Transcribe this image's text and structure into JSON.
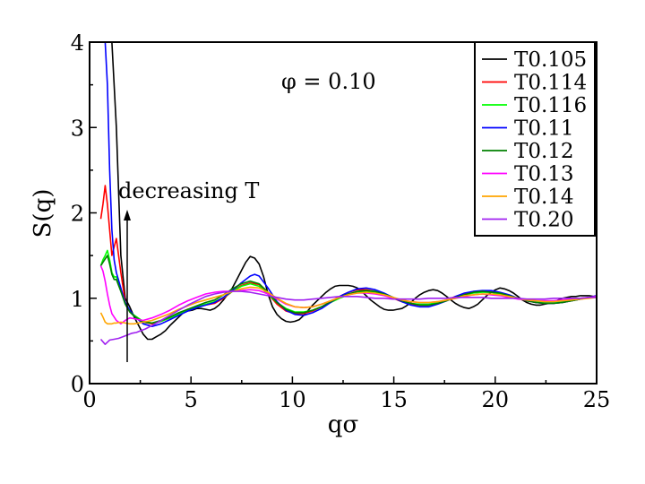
{
  "chart_data": {
    "type": "line",
    "title": "",
    "xlabel": "qσ",
    "ylabel": "S(q)",
    "xlim": [
      0,
      25
    ],
    "ylim": [
      0,
      4
    ],
    "xticks": [
      0,
      5,
      10,
      15,
      20,
      25
    ],
    "yticks": [
      0,
      1,
      2,
      3,
      4
    ],
    "grid": false,
    "legend_position": "top-right",
    "annotations": {
      "phi_label": "φ = 0.10",
      "trend_label": "decreasing T"
    },
    "series": [
      {
        "name": "T0.105",
        "color": "#000000",
        "x": [
          0.66,
          0.88,
          1.1,
          1.32,
          1.54,
          1.76,
          1.98,
          2.2,
          2.42,
          2.64,
          2.86,
          3.08,
          3.3,
          3.52,
          3.74,
          3.96,
          4.18,
          4.4,
          4.62,
          4.84,
          5.06,
          5.28,
          5.5,
          5.72,
          5.94,
          6.16,
          6.38,
          6.6,
          6.82,
          7.04,
          7.26,
          7.48,
          7.7,
          7.92,
          8.14,
          8.36,
          8.58,
          8.8,
          9.02,
          9.24,
          9.46,
          9.68,
          9.9,
          10.12,
          10.34,
          10.56,
          10.78,
          11.0,
          11.22,
          11.44,
          11.66,
          11.88,
          12.1,
          12.32,
          12.54,
          12.76,
          12.98,
          13.2,
          13.42,
          13.64,
          13.86,
          14.08,
          14.3,
          14.52,
          14.74,
          14.96,
          15.18,
          15.4,
          15.62,
          15.84,
          16.06,
          16.28,
          16.5,
          16.72,
          16.94,
          17.16,
          17.38,
          17.6,
          17.82,
          18.04,
          18.26,
          18.48,
          18.7,
          18.92,
          19.14,
          19.36,
          19.58,
          19.8,
          20.02,
          20.24,
          20.46,
          20.68,
          20.9,
          21.12,
          21.34,
          21.56,
          21.78,
          22.0,
          22.22,
          22.44,
          22.66,
          22.88,
          23.1,
          23.32,
          23.54,
          23.76,
          23.98,
          24.2,
          24.42,
          24.64,
          24.86,
          25.0
        ],
        "y": [
          4.0,
          4.0,
          4.0,
          3.0,
          1.5,
          1.0,
          0.9,
          0.78,
          0.68,
          0.58,
          0.52,
          0.52,
          0.55,
          0.58,
          0.62,
          0.68,
          0.73,
          0.78,
          0.83,
          0.85,
          0.86,
          0.88,
          0.88,
          0.87,
          0.86,
          0.88,
          0.92,
          0.98,
          1.05,
          1.12,
          1.22,
          1.32,
          1.42,
          1.49,
          1.47,
          1.4,
          1.25,
          1.05,
          0.9,
          0.81,
          0.76,
          0.73,
          0.72,
          0.73,
          0.75,
          0.8,
          0.86,
          0.92,
          0.97,
          1.02,
          1.07,
          1.11,
          1.14,
          1.15,
          1.15,
          1.15,
          1.14,
          1.12,
          1.08,
          1.03,
          0.98,
          0.94,
          0.9,
          0.87,
          0.86,
          0.86,
          0.87,
          0.88,
          0.91,
          0.95,
          1.0,
          1.04,
          1.07,
          1.09,
          1.1,
          1.09,
          1.06,
          1.02,
          0.98,
          0.94,
          0.91,
          0.89,
          0.88,
          0.9,
          0.93,
          0.98,
          1.03,
          1.07,
          1.1,
          1.12,
          1.11,
          1.09,
          1.06,
          1.02,
          0.98,
          0.95,
          0.93,
          0.92,
          0.92,
          0.93,
          0.94,
          0.96,
          0.98,
          1.0,
          1.01,
          1.02,
          1.02,
          1.03,
          1.03,
          1.03,
          1.02,
          1.03
        ]
      },
      {
        "name": "T0.114",
        "color": "#ff0000",
        "x": [
          0.55,
          0.66,
          0.77,
          0.88,
          0.99,
          1.1,
          1.21,
          1.32,
          1.54,
          1.76,
          1.98,
          2.2,
          2.64,
          3.08,
          3.52,
          3.96,
          4.4,
          4.84,
          5.28,
          5.72,
          6.16,
          6.6,
          7.04,
          7.48,
          7.92,
          8.36,
          8.8,
          9.24,
          9.68,
          10.12,
          10.56,
          11.0,
          11.44,
          11.88,
          12.32,
          12.76,
          13.2,
          13.64,
          14.08,
          14.52,
          14.96,
          15.4,
          15.84,
          16.28,
          16.72,
          17.16,
          17.6,
          18.04,
          18.48,
          18.92,
          19.36,
          19.8,
          20.24,
          20.68,
          21.12,
          21.56,
          22.0,
          22.44,
          22.88,
          23.32,
          23.76,
          24.2,
          24.64,
          25.0
        ],
        "y": [
          1.93,
          2.1,
          2.32,
          2.1,
          1.8,
          1.5,
          1.6,
          1.7,
          1.3,
          0.96,
          0.84,
          0.8,
          0.72,
          0.7,
          0.73,
          0.77,
          0.82,
          0.87,
          0.9,
          0.92,
          0.94,
          1.0,
          1.08,
          1.15,
          1.18,
          1.16,
          1.05,
          0.93,
          0.85,
          0.82,
          0.82,
          0.85,
          0.9,
          0.96,
          1.02,
          1.07,
          1.1,
          1.1,
          1.08,
          1.04,
          1.0,
          0.96,
          0.93,
          0.92,
          0.92,
          0.94,
          0.98,
          1.02,
          1.05,
          1.07,
          1.08,
          1.08,
          1.06,
          1.03,
          1.0,
          0.97,
          0.95,
          0.94,
          0.94,
          0.95,
          0.97,
          0.99,
          1.01,
          1.02
        ]
      },
      {
        "name": "T0.116",
        "color": "#00ff00",
        "x": [
          0.55,
          0.66,
          0.77,
          0.88,
          0.99,
          1.1,
          1.21,
          1.32,
          1.54,
          1.76,
          1.98,
          2.2,
          2.64,
          3.08,
          3.52,
          3.96,
          4.4,
          4.84,
          5.28,
          5.72,
          6.16,
          6.6,
          7.04,
          7.48,
          7.92,
          8.36,
          8.8,
          9.24,
          9.68,
          10.12,
          10.56,
          11.0,
          11.44,
          11.88,
          12.32,
          12.76,
          13.2,
          13.64,
          14.08,
          14.52,
          14.96,
          15.4,
          15.84,
          16.28,
          16.72,
          17.16,
          17.6,
          18.04,
          18.48,
          18.92,
          19.36,
          19.8,
          20.24,
          20.68,
          21.12,
          21.56,
          22.0,
          22.44,
          22.88,
          23.32,
          23.76,
          24.2,
          24.64,
          25.0
        ],
        "y": [
          1.38,
          1.45,
          1.5,
          1.56,
          1.45,
          1.3,
          1.25,
          1.25,
          1.1,
          0.95,
          0.85,
          0.8,
          0.73,
          0.71,
          0.73,
          0.77,
          0.81,
          0.86,
          0.9,
          0.93,
          0.96,
          1.01,
          1.08,
          1.14,
          1.17,
          1.14,
          1.05,
          0.95,
          0.88,
          0.84,
          0.84,
          0.86,
          0.9,
          0.95,
          1.0,
          1.04,
          1.07,
          1.08,
          1.07,
          1.04,
          1.0,
          0.97,
          0.94,
          0.93,
          0.93,
          0.95,
          0.98,
          1.01,
          1.04,
          1.06,
          1.07,
          1.07,
          1.05,
          1.03,
          1.0,
          0.98,
          0.96,
          0.95,
          0.95,
          0.96,
          0.97,
          0.99,
          1.01,
          1.02
        ]
      },
      {
        "name": "T0.11",
        "color": "#0000ff",
        "x": [
          0.66,
          0.77,
          0.88,
          0.99,
          1.1,
          1.21,
          1.32,
          1.54,
          1.76,
          1.98,
          2.2,
          2.64,
          3.08,
          3.52,
          3.96,
          4.4,
          4.84,
          5.28,
          5.72,
          6.16,
          6.6,
          7.04,
          7.48,
          7.92,
          8.14,
          8.36,
          8.8,
          9.24,
          9.68,
          10.12,
          10.56,
          11.0,
          11.44,
          11.88,
          12.32,
          12.76,
          13.2,
          13.64,
          14.08,
          14.52,
          14.96,
          15.4,
          15.84,
          16.28,
          16.72,
          17.16,
          17.6,
          18.04,
          18.48,
          18.92,
          19.36,
          19.8,
          20.24,
          20.68,
          21.12,
          21.56,
          22.0,
          22.44,
          22.88,
          23.32,
          23.76,
          24.2,
          24.64,
          25.0
        ],
        "y": [
          4.0,
          4.0,
          3.5,
          2.5,
          1.8,
          1.45,
          1.3,
          1.12,
          0.95,
          0.86,
          0.79,
          0.7,
          0.67,
          0.7,
          0.75,
          0.8,
          0.85,
          0.89,
          0.92,
          0.95,
          1.01,
          1.09,
          1.18,
          1.26,
          1.28,
          1.26,
          1.12,
          0.96,
          0.86,
          0.81,
          0.8,
          0.83,
          0.88,
          0.95,
          1.02,
          1.07,
          1.11,
          1.12,
          1.1,
          1.06,
          1.01,
          0.96,
          0.92,
          0.9,
          0.9,
          0.93,
          0.97,
          1.02,
          1.06,
          1.08,
          1.09,
          1.09,
          1.07,
          1.04,
          1.0,
          0.97,
          0.95,
          0.94,
          0.94,
          0.95,
          0.97,
          0.99,
          1.01,
          1.03
        ]
      },
      {
        "name": "T0.12",
        "color": "#008000",
        "x": [
          0.55,
          0.66,
          0.77,
          0.88,
          0.99,
          1.1,
          1.21,
          1.32,
          1.54,
          1.76,
          1.98,
          2.2,
          2.64,
          3.08,
          3.52,
          3.96,
          4.4,
          4.84,
          5.28,
          5.72,
          6.16,
          6.6,
          7.04,
          7.48,
          7.92,
          8.36,
          8.8,
          9.24,
          9.68,
          10.12,
          10.56,
          11.0,
          11.44,
          11.88,
          12.32,
          12.76,
          13.2,
          13.64,
          14.08,
          14.52,
          14.96,
          15.4,
          15.84,
          16.28,
          16.72,
          17.16,
          17.6,
          18.04,
          18.48,
          18.92,
          19.36,
          19.8,
          20.24,
          20.68,
          21.12,
          21.56,
          22.0,
          22.44,
          22.88,
          23.32,
          23.76,
          24.2,
          24.64,
          25.0
        ],
        "y": [
          1.38,
          1.42,
          1.46,
          1.5,
          1.4,
          1.28,
          1.22,
          1.22,
          1.08,
          0.93,
          0.84,
          0.79,
          0.72,
          0.71,
          0.74,
          0.78,
          0.83,
          0.87,
          0.91,
          0.95,
          0.98,
          1.04,
          1.11,
          1.17,
          1.2,
          1.17,
          1.07,
          0.95,
          0.87,
          0.83,
          0.83,
          0.86,
          0.9,
          0.96,
          1.01,
          1.05,
          1.08,
          1.09,
          1.08,
          1.05,
          1.01,
          0.97,
          0.94,
          0.92,
          0.92,
          0.94,
          0.97,
          1.01,
          1.04,
          1.07,
          1.08,
          1.07,
          1.06,
          1.03,
          1.0,
          0.97,
          0.95,
          0.94,
          0.94,
          0.95,
          0.97,
          0.99,
          1.01,
          1.02
        ]
      },
      {
        "name": "T0.13",
        "color": "#ff00ff",
        "x": [
          0.55,
          0.66,
          0.77,
          0.88,
          0.99,
          1.1,
          1.21,
          1.32,
          1.54,
          1.76,
          1.98,
          2.2,
          2.42,
          2.64,
          3.08,
          3.52,
          3.96,
          4.4,
          4.84,
          5.28,
          5.72,
          6.16,
          6.6,
          7.04,
          7.48,
          7.92,
          8.36,
          8.8,
          9.24,
          9.68,
          10.12,
          10.56,
          11.0,
          11.44,
          11.88,
          12.32,
          12.76,
          13.2,
          13.64,
          14.08,
          14.52,
          14.96,
          15.4,
          15.84,
          16.28,
          16.72,
          17.16,
          17.6,
          18.04,
          18.48,
          18.92,
          19.36,
          19.8,
          20.24,
          20.68,
          21.12,
          21.56,
          22.0,
          22.44,
          22.88,
          23.32,
          23.76,
          24.2,
          24.64,
          25.0
        ],
        "y": [
          1.38,
          1.32,
          1.2,
          1.05,
          0.92,
          0.82,
          0.78,
          0.74,
          0.7,
          0.74,
          0.77,
          0.76,
          0.75,
          0.74,
          0.77,
          0.81,
          0.86,
          0.92,
          0.97,
          1.01,
          1.05,
          1.07,
          1.08,
          1.08,
          1.09,
          1.1,
          1.09,
          1.05,
          0.99,
          0.93,
          0.9,
          0.89,
          0.9,
          0.93,
          0.97,
          1.01,
          1.04,
          1.06,
          1.06,
          1.05,
          1.03,
          1.0,
          0.98,
          0.96,
          0.95,
          0.95,
          0.96,
          0.98,
          1.0,
          1.02,
          1.04,
          1.05,
          1.04,
          1.03,
          1.01,
          0.99,
          0.98,
          0.97,
          0.97,
          0.97,
          0.98,
          0.99,
          1.0,
          1.01,
          1.02
        ]
      },
      {
        "name": "T0.14",
        "color": "#ffa500",
        "x": [
          0.55,
          0.66,
          0.77,
          0.88,
          0.99,
          1.1,
          1.21,
          1.32,
          1.54,
          1.76,
          1.98,
          2.2,
          2.64,
          3.08,
          3.52,
          3.96,
          4.4,
          4.84,
          5.28,
          5.72,
          6.16,
          6.6,
          7.04,
          7.48,
          7.92,
          8.36,
          8.8,
          9.24,
          9.68,
          10.12,
          10.56,
          11.0,
          11.44,
          11.88,
          12.32,
          12.76,
          13.2,
          13.64,
          14.08,
          14.52,
          14.96,
          15.4,
          15.84,
          16.28,
          16.72,
          17.16,
          17.6,
          18.04,
          18.48,
          18.92,
          19.36,
          19.8,
          20.24,
          20.68,
          21.12,
          21.56,
          22.0,
          22.44,
          22.88,
          23.32,
          23.76,
          24.2,
          24.64,
          25.0
        ],
        "y": [
          0.83,
          0.78,
          0.72,
          0.7,
          0.7,
          0.7,
          0.71,
          0.71,
          0.72,
          0.71,
          0.7,
          0.7,
          0.72,
          0.74,
          0.78,
          0.82,
          0.87,
          0.91,
          0.95,
          0.98,
          1.01,
          1.04,
          1.08,
          1.11,
          1.13,
          1.12,
          1.07,
          1.0,
          0.94,
          0.9,
          0.89,
          0.9,
          0.93,
          0.97,
          1.01,
          1.04,
          1.06,
          1.07,
          1.06,
          1.04,
          1.01,
          0.98,
          0.96,
          0.95,
          0.95,
          0.96,
          0.98,
          1.0,
          1.03,
          1.04,
          1.05,
          1.05,
          1.04,
          1.02,
          1.0,
          0.98,
          0.97,
          0.96,
          0.96,
          0.97,
          0.98,
          0.99,
          1.0,
          1.01
        ]
      },
      {
        "name": "T0.20",
        "color": "#a020f0",
        "x": [
          0.55,
          0.77,
          0.99,
          1.21,
          1.43,
          1.65,
          1.87,
          2.09,
          2.31,
          2.53,
          2.75,
          3.08,
          3.52,
          3.96,
          4.4,
          4.84,
          5.28,
          5.72,
          6.16,
          6.6,
          7.04,
          7.48,
          7.92,
          8.36,
          8.8,
          9.24,
          9.68,
          10.12,
          10.56,
          11.0,
          11.44,
          11.88,
          12.32,
          12.76,
          13.2,
          13.64,
          14.08,
          14.52,
          14.96,
          15.4,
          15.84,
          16.28,
          16.72,
          17.16,
          17.6,
          18.04,
          18.48,
          18.92,
          19.36,
          19.8,
          20.24,
          20.68,
          21.12,
          21.56,
          22.0,
          22.44,
          22.88,
          23.32,
          23.76,
          24.2,
          24.64,
          25.0
        ],
        "y": [
          0.52,
          0.46,
          0.51,
          0.52,
          0.53,
          0.55,
          0.57,
          0.59,
          0.6,
          0.62,
          0.64,
          0.68,
          0.74,
          0.8,
          0.86,
          0.92,
          0.97,
          1.02,
          1.05,
          1.07,
          1.08,
          1.08,
          1.07,
          1.05,
          1.03,
          1.01,
          0.99,
          0.98,
          0.98,
          0.99,
          1.0,
          1.01,
          1.02,
          1.02,
          1.02,
          1.01,
          1.0,
          1.0,
          0.99,
          0.99,
          0.99,
          0.99,
          1.0,
          1.0,
          1.0,
          1.01,
          1.01,
          1.01,
          1.01,
          1.0,
          1.0,
          1.0,
          1.0,
          0.99,
          0.99,
          0.99,
          1.0,
          1.0,
          1.0,
          1.0,
          1.01,
          1.01
        ]
      }
    ]
  }
}
